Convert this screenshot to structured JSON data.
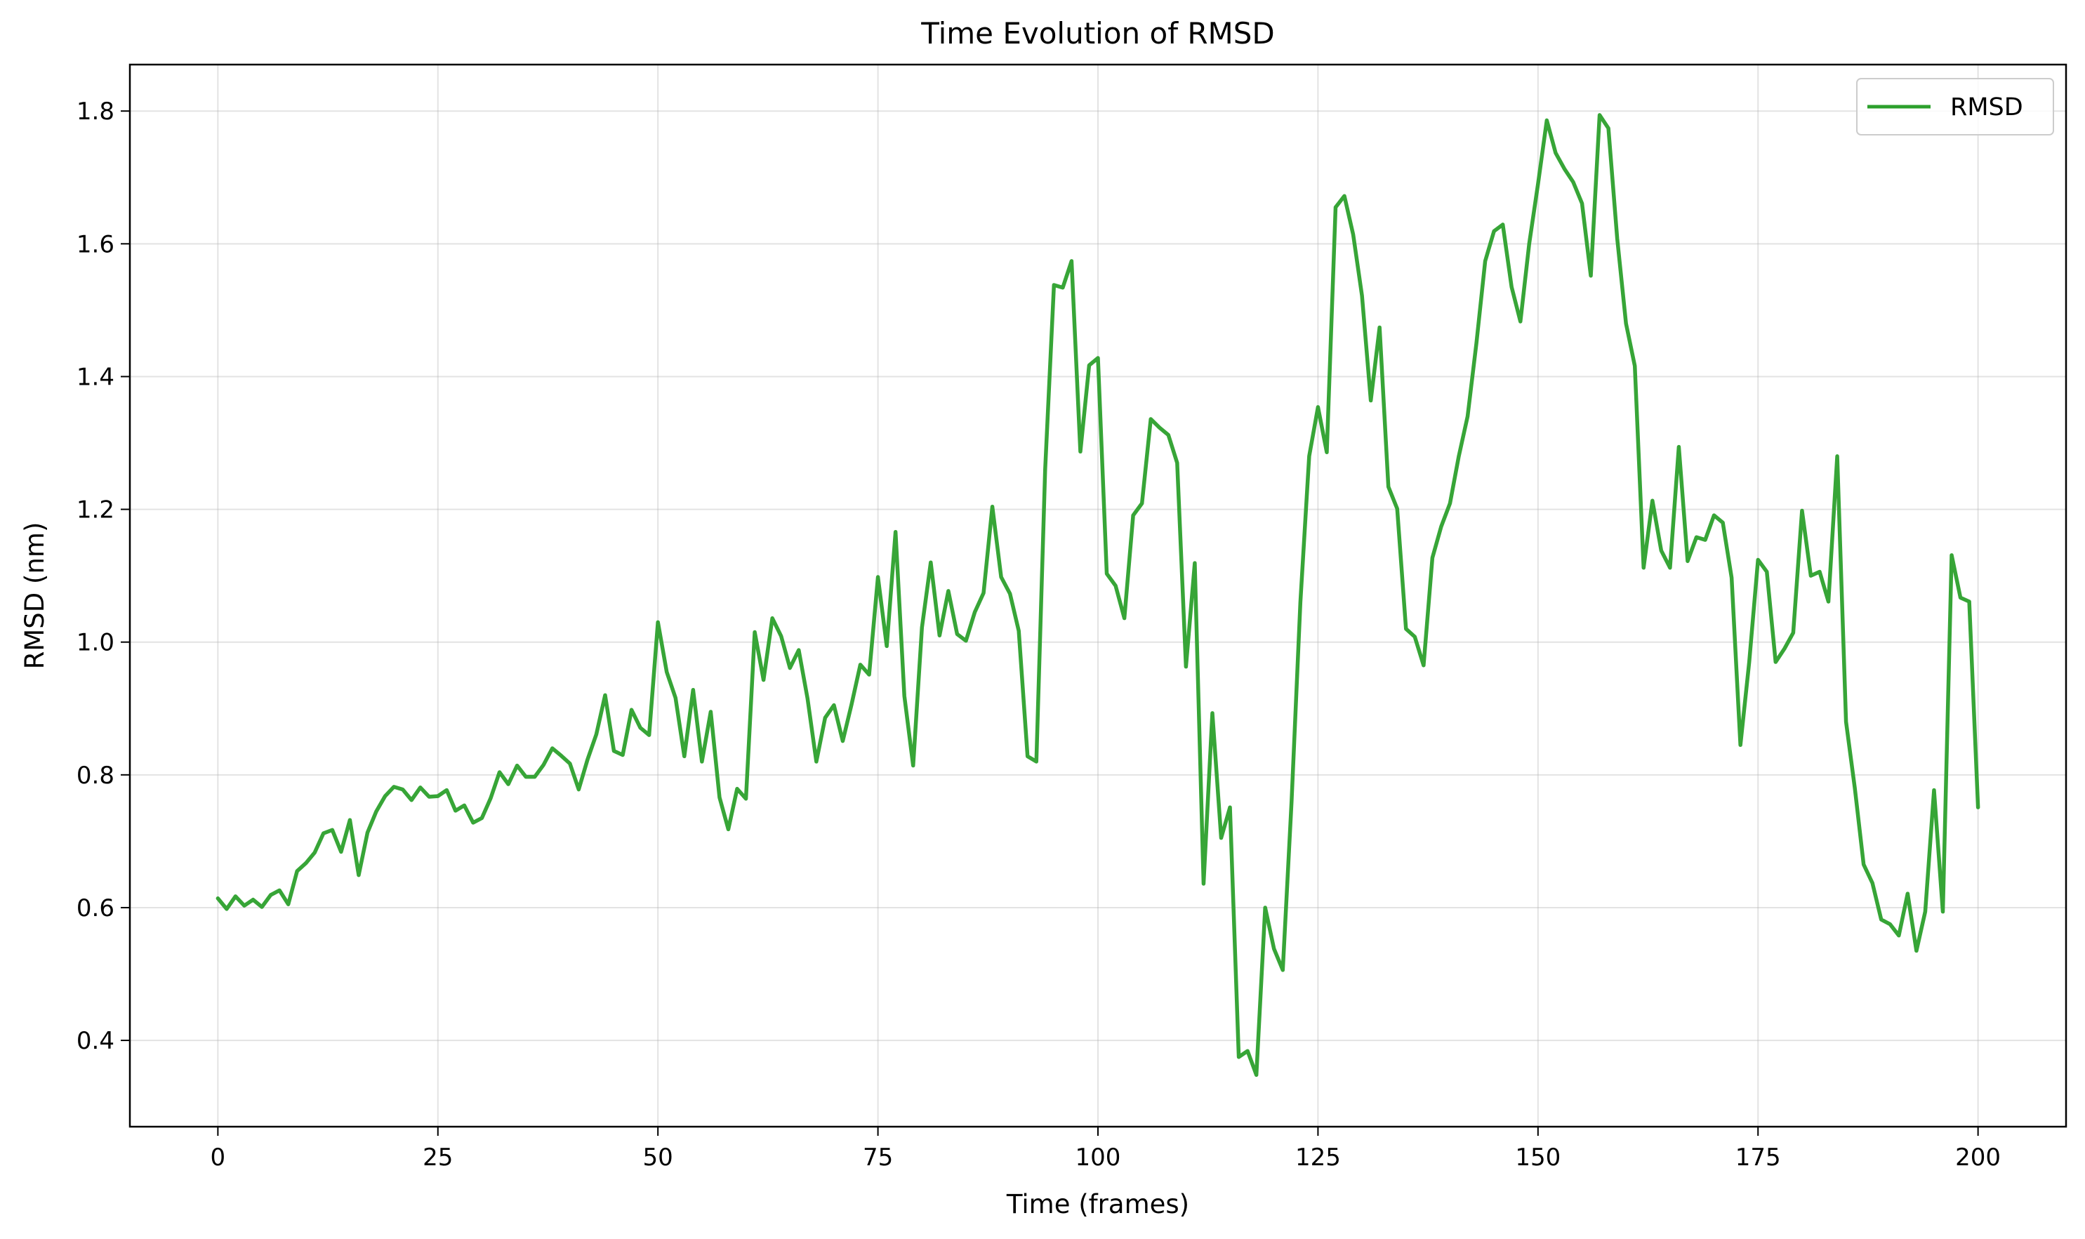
{
  "chart_data": {
    "type": "line",
    "title": "Time Evolution of RMSD",
    "xlabel": "Time (frames)",
    "ylabel": "RMSD (nm)",
    "xlim": [
      -10,
      210
    ],
    "ylim": [
      0.27,
      1.87
    ],
    "xticks": [
      0,
      25,
      50,
      75,
      100,
      125,
      150,
      175,
      200
    ],
    "yticks": [
      0.4,
      0.6,
      0.8,
      1.0,
      1.2,
      1.4,
      1.6,
      1.8
    ],
    "xtick_labels": [
      "0",
      "25",
      "50",
      "75",
      "100",
      "125",
      "150",
      "175",
      "200"
    ],
    "ytick_labels": [
      "0.4",
      "0.6",
      "0.8",
      "1.0",
      "1.2",
      "1.4",
      "1.6",
      "1.8"
    ],
    "grid": true,
    "legend_position": "top-right",
    "series": [
      {
        "name": "RMSD",
        "color": "#2ca02c",
        "values": [
          0.614,
          0.598,
          0.617,
          0.603,
          0.612,
          0.601,
          0.619,
          0.626,
          0.605,
          0.655,
          0.667,
          0.683,
          0.712,
          0.717,
          0.684,
          0.732,
          0.649,
          0.713,
          0.745,
          0.768,
          0.782,
          0.778,
          0.762,
          0.781,
          0.767,
          0.768,
          0.777,
          0.746,
          0.754,
          0.728,
          0.735,
          0.765,
          0.804,
          0.786,
          0.814,
          0.797,
          0.797,
          0.815,
          0.84,
          0.829,
          0.817,
          0.778,
          0.823,
          0.861,
          0.92,
          0.836,
          0.83,
          0.898,
          0.871,
          0.86,
          1.03,
          0.955,
          0.916,
          0.828,
          0.928,
          0.82,
          0.895,
          0.766,
          0.718,
          0.779,
          0.764,
          1.015,
          0.943,
          1.036,
          1.009,
          0.961,
          0.988,
          0.915,
          0.82,
          0.886,
          0.905,
          0.851,
          0.906,
          0.966,
          0.951,
          1.098,
          0.994,
          1.166,
          0.919,
          0.814,
          1.022,
          1.12,
          1.01,
          1.077,
          1.012,
          1.002,
          1.045,
          1.074,
          1.204,
          1.098,
          1.073,
          1.017,
          0.828,
          0.82,
          1.26,
          1.538,
          1.534,
          1.574,
          1.287,
          1.417,
          1.428,
          1.103,
          1.085,
          1.036,
          1.191,
          1.209,
          1.336,
          1.323,
          1.312,
          1.27,
          0.963,
          1.119,
          0.636,
          0.893,
          0.705,
          0.751,
          0.375,
          0.384,
          0.348,
          0.6,
          0.538,
          0.506,
          0.76,
          1.06,
          1.28,
          1.354,
          1.286,
          1.655,
          1.672,
          1.614,
          1.522,
          1.364,
          1.474,
          1.234,
          1.201,
          1.02,
          1.008,
          0.965,
          1.127,
          1.174,
          1.209,
          1.28,
          1.34,
          1.45,
          1.574,
          1.619,
          1.629,
          1.535,
          1.483,
          1.6,
          1.69,
          1.786,
          1.737,
          1.713,
          1.693,
          1.661,
          1.552,
          1.794,
          1.774,
          1.608,
          1.48,
          1.416,
          1.112,
          1.213,
          1.138,
          1.112,
          1.294,
          1.122,
          1.158,
          1.154,
          1.191,
          1.18,
          1.097,
          0.845,
          0.97,
          1.124,
          1.106,
          0.97,
          0.99,
          1.014,
          1.198,
          1.1,
          1.106,
          1.061,
          1.28,
          0.88,
          0.78,
          0.665,
          0.637,
          0.582,
          0.575,
          0.558,
          0.621,
          0.535,
          0.594,
          0.777,
          0.594,
          1.131,
          1.067,
          1.061,
          0.751
        ]
      }
    ]
  }
}
